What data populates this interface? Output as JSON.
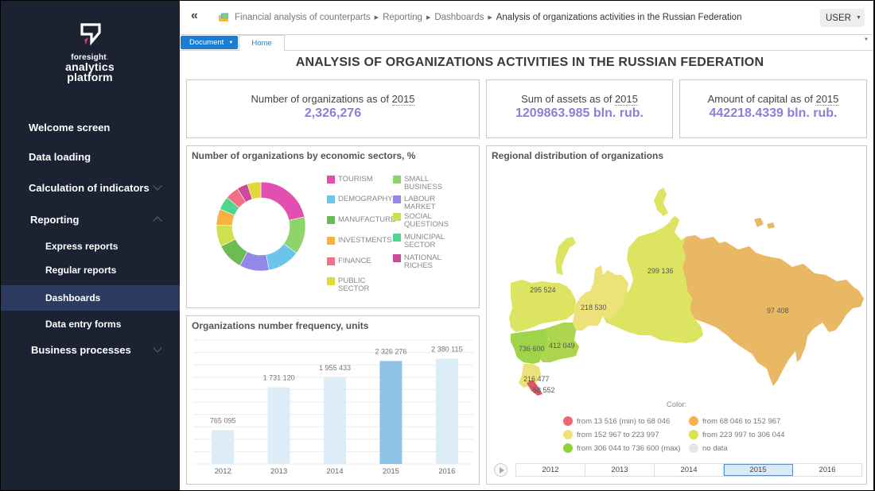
{
  "sidebar": {
    "brand_small": "foresight",
    "brand_line1": "analytics",
    "brand_line2": "platform",
    "items": [
      {
        "label": "Welcome screen",
        "level": 0,
        "chevron": ""
      },
      {
        "label": "Data loading",
        "level": 0,
        "chevron": ""
      },
      {
        "label": "Calculation of indicators",
        "level": 0,
        "chevron": "down"
      },
      {
        "label": "Reporting",
        "level": 0,
        "chevron": "up"
      },
      {
        "label": "Express reports",
        "level": 1,
        "chevron": ""
      },
      {
        "label": "Regular reports",
        "level": 1,
        "chevron": ""
      },
      {
        "label": "Dashboards",
        "level": 1,
        "chevron": "",
        "selected": true
      },
      {
        "label": "Data entry forms",
        "level": 1,
        "chevron": ""
      },
      {
        "label": "Business processes",
        "level": 0,
        "chevron": "down"
      }
    ]
  },
  "header": {
    "collapse_icon": "«",
    "breadcrumbs": [
      "Financial analysis of counterparts",
      "Reporting",
      "Dashboards",
      "Analysis of organizations activities in the Russian Federation"
    ],
    "user_label": "USER",
    "document_button": "Document",
    "home_tab": "Home"
  },
  "dashboard": {
    "title": "ANALYSIS OF ORGANIZATIONS ACTIVITIES IN THE RUSSIAN FEDERATION",
    "kpis": [
      {
        "label": "Number of organizations as of",
        "year": "2015",
        "value": "2,326,276"
      },
      {
        "label": "Sum of assets as of",
        "year": "2015",
        "value": "1209863.985 bln. rub."
      },
      {
        "label": "Amount of capital as of",
        "year": "2015",
        "value": "442218.4339 bln. rub."
      }
    ],
    "accent_color": "#8a80d8"
  },
  "chart_data": [
    {
      "type": "pie",
      "title": "Number of organizations by economic sectors, %",
      "donut": true,
      "legend_position": "right",
      "slices": [
        {
          "label": "TOURISM",
          "value": 22,
          "color": "#e24fb0"
        },
        {
          "label": "SMALL BUSINESS",
          "value": 14,
          "color": "#8fd46b"
        },
        {
          "label": "DEMOGRAPHY",
          "value": 12,
          "color": "#6cc4ea"
        },
        {
          "label": "LABOUR MARKET",
          "value": 11,
          "color": "#9387e8"
        },
        {
          "label": "MANUFACTURE",
          "value": 10,
          "color": "#6cbb55"
        },
        {
          "label": "SOCIAL QUESTIONS",
          "value": 8,
          "color": "#cfe04c"
        },
        {
          "label": "INVESTMENTS",
          "value": 6,
          "color": "#f8b040"
        },
        {
          "label": "MUNICIPAL SECTOR",
          "value": 5,
          "color": "#4fd68e"
        },
        {
          "label": "FINANCE",
          "value": 5,
          "color": "#f07088"
        },
        {
          "label": "NATIONAL RICHES",
          "value": 4,
          "color": "#cc4a9c"
        },
        {
          "label": "PUBLIC SECTOR",
          "value": 5,
          "color": "#e2d83a"
        }
      ],
      "legend_order": [
        "TOURISM",
        "SMALL BUSINESS",
        "DEMOGRAPHY",
        "LABOUR MARKET",
        "MANUFACTURE",
        "SOCIAL QUESTIONS",
        "INVESTMENTS",
        "MUNICIPAL SECTOR",
        "FINANCE",
        "NATIONAL RICHES",
        "PUBLIC SECTOR"
      ]
    },
    {
      "type": "bar",
      "title": "Organizations number frequency, units",
      "categories": [
        "2012",
        "2013",
        "2014",
        "2015",
        "2016"
      ],
      "values": [
        765095,
        1731120,
        1955433,
        2326276,
        2380115
      ],
      "data_labels": [
        "765 095",
        "1 731 120",
        "1 955 433",
        "2 326 276",
        "2 380 115"
      ],
      "highlight": "2015",
      "ylim": [
        0,
        2800000
      ],
      "grid": true,
      "colors": {
        "normal": "#dcedf8",
        "highlight": "#8ec3e6"
      }
    },
    {
      "type": "map",
      "title": "Regional distribution of organizations",
      "regions": [
        {
          "name": "Northwestern",
          "value": 295524,
          "label": "295 524",
          "color": "#dce462"
        },
        {
          "name": "Central",
          "value": 736600,
          "label": "736 600",
          "color": "#9fd44a"
        },
        {
          "name": "Volga",
          "value": 412049,
          "label": "412 049",
          "color": "#add64e"
        },
        {
          "name": "Ural",
          "value": 218530,
          "label": "218 530",
          "color": "#ede27a"
        },
        {
          "name": "Siberian",
          "value": 299136,
          "label": "299 136",
          "color": "#dce462"
        },
        {
          "name": "Far Eastern",
          "value": 97408,
          "label": "97 408",
          "color": "#e9b864"
        },
        {
          "name": "Southern",
          "value": 216477,
          "label": "216 477",
          "color": "#ede27a"
        },
        {
          "name": "North Caucasian",
          "value": 58552,
          "label": "58 552",
          "color": "#d45a6a"
        }
      ],
      "legend_title": "Color:",
      "legend": [
        {
          "label": "from 13 516 (min) to 68 046",
          "color": "#ee6672"
        },
        {
          "label": "from 68 046 to 152 967",
          "color": "#f7b04e"
        },
        {
          "label": "from 152 967 to 223 997",
          "color": "#f1e07a"
        },
        {
          "label": "from 223 997 to 306 044",
          "color": "#d6e34c"
        },
        {
          "label": "from 306 044 to 736 600 (max)",
          "color": "#8fd33c"
        },
        {
          "label": "no data",
          "color": "#e6e6e6"
        }
      ],
      "timeline": {
        "years": [
          "2012",
          "2013",
          "2014",
          "2015",
          "2016"
        ],
        "selected": "2015"
      }
    }
  ]
}
